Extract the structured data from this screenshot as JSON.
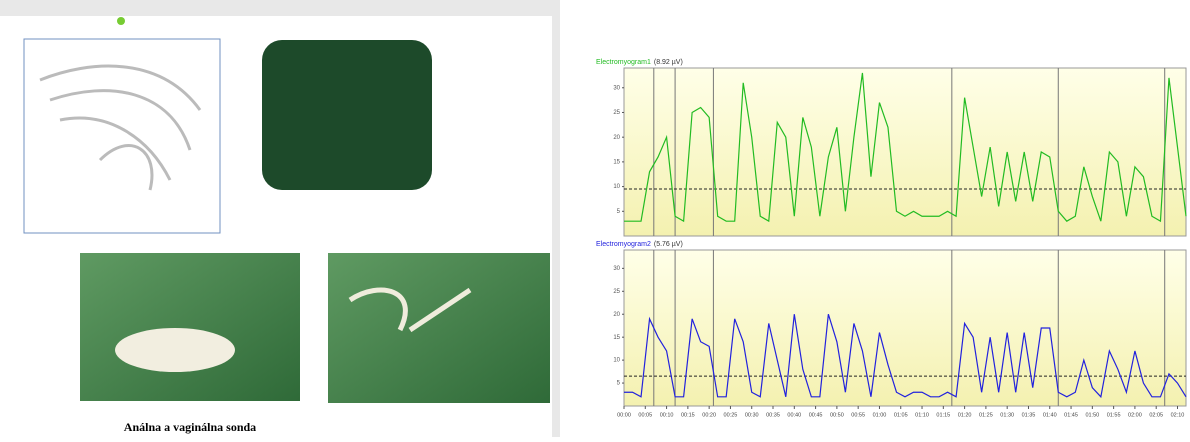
{
  "document": {
    "caption": "Análna a vaginálna sonda"
  },
  "chart_data": [
    {
      "type": "line",
      "title": "Electromyogram1",
      "subtitle": "(8.92 µV)",
      "x": [
        0,
        2,
        4,
        6,
        8,
        10,
        12,
        14,
        16,
        18,
        20,
        22,
        24,
        26,
        28,
        30,
        32,
        34,
        36,
        38,
        40,
        42,
        44,
        46,
        48,
        50,
        52,
        54,
        56,
        58,
        60,
        62,
        64,
        66,
        68,
        70,
        72,
        74,
        76,
        78,
        80,
        82,
        84,
        86,
        88,
        90,
        92,
        94,
        96,
        98,
        100,
        102,
        104,
        106,
        108,
        110,
        112,
        114,
        116,
        118,
        120,
        122,
        124,
        126,
        128,
        130,
        132
      ],
      "series": [
        {
          "name": "Electromyogram1",
          "color": "#22bb22",
          "values": [
            3,
            3,
            3,
            13,
            16,
            20,
            4,
            3,
            25,
            26,
            24,
            4,
            3,
            3,
            31,
            20,
            4,
            3,
            23,
            20,
            4,
            24,
            18,
            4,
            16,
            22,
            5,
            20,
            33,
            12,
            27,
            22,
            5,
            4,
            5,
            4,
            4,
            4,
            5,
            4,
            28,
            18,
            8,
            18,
            6,
            17,
            7,
            17,
            7,
            17,
            16,
            5,
            3,
            4,
            14,
            8,
            3,
            17,
            15,
            4,
            14,
            12,
            4,
            3,
            32,
            18,
            4
          ]
        }
      ],
      "threshold": 9.5,
      "event_lines": [
        7,
        12,
        21,
        77,
        102,
        127
      ],
      "xlim": [
        0,
        132
      ],
      "ylim": [
        0,
        34
      ],
      "yticks": [
        5,
        10,
        15,
        20,
        25,
        30
      ]
    },
    {
      "type": "line",
      "title": "Electromyogram2",
      "subtitle": "(5.76 µV)",
      "x": [
        0,
        2,
        4,
        6,
        8,
        10,
        12,
        14,
        16,
        18,
        20,
        22,
        24,
        26,
        28,
        30,
        32,
        34,
        36,
        38,
        40,
        42,
        44,
        46,
        48,
        50,
        52,
        54,
        56,
        58,
        60,
        62,
        64,
        66,
        68,
        70,
        72,
        74,
        76,
        78,
        80,
        82,
        84,
        86,
        88,
        90,
        92,
        94,
        96,
        98,
        100,
        102,
        104,
        106,
        108,
        110,
        112,
        114,
        116,
        118,
        120,
        122,
        124,
        126,
        128,
        130,
        132
      ],
      "series": [
        {
          "name": "Electromyogram2",
          "color": "#2222dd",
          "values": [
            3,
            3,
            2,
            19,
            15,
            12,
            2,
            2,
            19,
            14,
            13,
            2,
            2,
            19,
            14,
            3,
            2,
            18,
            10,
            2,
            20,
            8,
            2,
            2,
            20,
            14,
            3,
            18,
            12,
            2,
            16,
            9,
            3,
            2,
            3,
            3,
            2,
            2,
            3,
            2,
            18,
            15,
            3,
            15,
            3,
            16,
            3,
            16,
            4,
            17,
            17,
            3,
            2,
            3,
            10,
            4,
            2,
            12,
            8,
            3,
            12,
            5,
            2,
            2,
            7,
            5,
            2
          ]
        }
      ],
      "threshold": 6.5,
      "event_lines": [
        7,
        12,
        21,
        77,
        102,
        127
      ],
      "xlim": [
        0,
        132
      ],
      "ylim": [
        0,
        34
      ],
      "yticks": [
        5,
        10,
        15,
        20,
        25,
        30
      ],
      "xticks": [
        {
          "value": 0,
          "label": "00:00"
        },
        {
          "value": 5,
          "label": "00:05"
        },
        {
          "value": 10,
          "label": "00:10"
        },
        {
          "value": 15,
          "label": "00:15"
        },
        {
          "value": 20,
          "label": "00:20"
        },
        {
          "value": 25,
          "label": "00:25"
        },
        {
          "value": 30,
          "label": "00:30"
        },
        {
          "value": 35,
          "label": "00:35"
        },
        {
          "value": 40,
          "label": "00:40"
        },
        {
          "value": 45,
          "label": "00:45"
        },
        {
          "value": 50,
          "label": "00:50"
        },
        {
          "value": 55,
          "label": "00:55"
        },
        {
          "value": 60,
          "label": "01:00"
        },
        {
          "value": 65,
          "label": "01:05"
        },
        {
          "value": 70,
          "label": "01:10"
        },
        {
          "value": 75,
          "label": "01:15"
        },
        {
          "value": 80,
          "label": "01:20"
        },
        {
          "value": 85,
          "label": "01:25"
        },
        {
          "value": 90,
          "label": "01:30"
        },
        {
          "value": 95,
          "label": "01:35"
        },
        {
          "value": 100,
          "label": "01:40"
        },
        {
          "value": 105,
          "label": "01:45"
        },
        {
          "value": 110,
          "label": "01:50"
        },
        {
          "value": 115,
          "label": "01:55"
        },
        {
          "value": 120,
          "label": "02:00"
        },
        {
          "value": 125,
          "label": "02:05"
        },
        {
          "value": 130,
          "label": "02:10"
        }
      ]
    }
  ]
}
